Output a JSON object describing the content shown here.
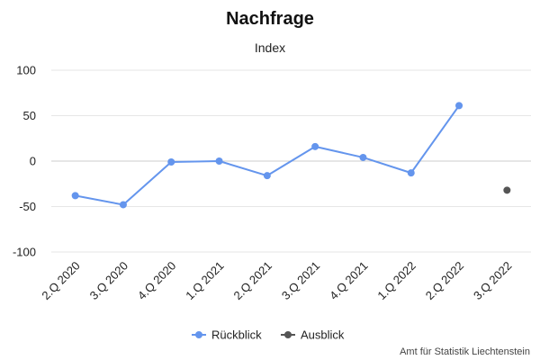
{
  "chart_data": {
    "type": "line",
    "title": "Nachfrage",
    "subtitle": "Index",
    "xlabel": "",
    "ylabel": "",
    "categories": [
      "2.Q 2020",
      "3.Q 2020",
      "4.Q 2020",
      "1.Q 2021",
      "2.Q 2021",
      "3.Q 2021",
      "4.Q 2021",
      "1.Q 2022",
      "2.Q 2022",
      "3.Q 2022"
    ],
    "ylim": [
      -100,
      100
    ],
    "yticks": [
      100,
      50,
      0,
      -50,
      -100
    ],
    "grid": true,
    "legend_position": "bottom-center",
    "series": [
      {
        "name": "Rückblick",
        "color": "#6495ED",
        "values": [
          -38,
          -48,
          -1,
          0,
          -16,
          16,
          4,
          -13,
          61,
          null
        ]
      },
      {
        "name": "Ausblick",
        "color": "#555555",
        "values": [
          null,
          null,
          null,
          null,
          null,
          null,
          null,
          null,
          null,
          -32
        ]
      }
    ],
    "credit": "Amt für Statistik Liechtenstein"
  }
}
